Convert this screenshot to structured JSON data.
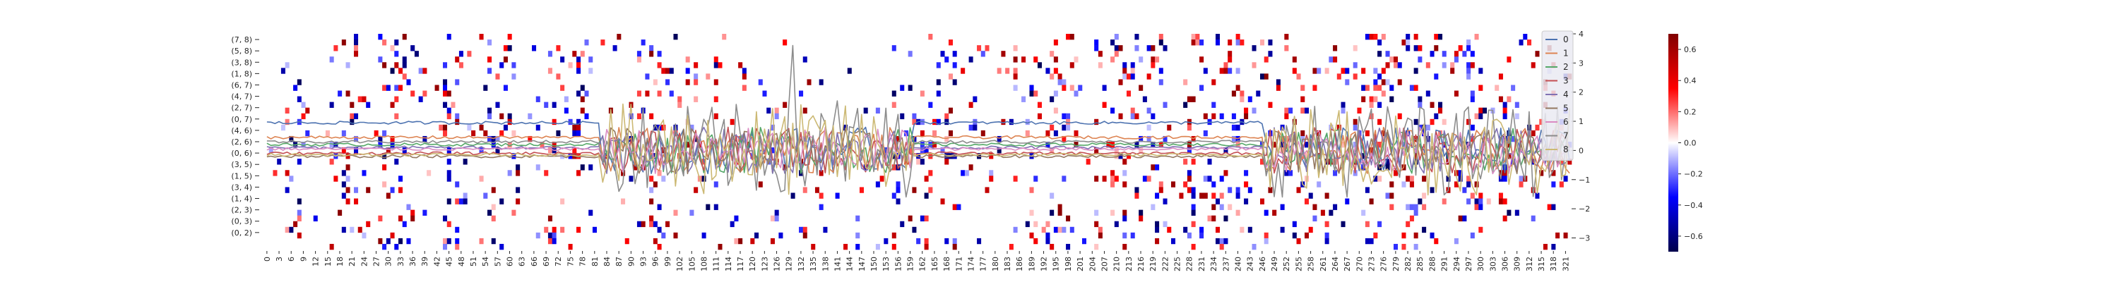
{
  "chart_data": {
    "type": "heatmap",
    "heatmap": {
      "row_labels": [
        "(7, 8)",
        "(5, 8)",
        "(3, 8)",
        "(1, 8)",
        "(6, 7)",
        "(4, 7)",
        "(2, 7)",
        "(0, 7)",
        "(4, 6)",
        "(2, 6)",
        "(0, 6)",
        "(3, 5)",
        "(1, 5)",
        "(3, 4)",
        "(1, 4)",
        "(2, 3)",
        "(0, 3)",
        "(0, 2)"
      ],
      "row_count": 38,
      "column_count": 323,
      "x_tick_step": 3,
      "x_ticks": [
        0,
        3,
        6,
        9,
        12,
        15,
        18,
        21,
        24,
        27,
        30,
        33,
        36,
        39,
        42,
        45,
        48,
        51,
        54,
        57,
        60,
        63,
        66,
        69,
        72,
        75,
        78,
        81,
        84,
        87,
        90,
        93,
        96,
        99,
        102,
        105,
        108,
        111,
        114,
        117,
        120,
        123,
        126,
        129,
        132,
        135,
        138,
        141,
        144,
        147,
        150,
        153,
        156,
        159,
        162,
        165,
        168,
        171,
        174,
        177,
        180,
        183,
        186,
        189,
        192,
        195,
        198,
        201,
        204,
        207,
        210,
        213,
        216,
        219,
        222,
        225,
        228,
        231,
        234,
        237,
        240,
        243,
        246,
        249,
        252,
        255,
        258,
        261,
        264,
        267,
        270,
        273,
        276,
        279,
        282,
        285,
        288,
        291,
        294,
        297,
        300,
        303,
        306,
        309,
        312,
        315,
        318,
        321
      ],
      "colormap": "seismic",
      "range": [
        -0.7,
        0.7
      ],
      "cells_description_note": ""
    },
    "colorbar": {
      "ticks": [
        0.6,
        0.4,
        0.2,
        0.0,
        -0.2,
        -0.4,
        -0.6
      ],
      "tick_labels": [
        "0.6",
        "0.4",
        "0.2",
        "0.0",
        "−0.2",
        "−0.4",
        "−0.6"
      ],
      "range": [
        -0.7,
        0.7
      ],
      "low_color": "#00004c",
      "mid_color": "#ffffff",
      "high_color": "#800000"
    },
    "lines": {
      "type": "line",
      "ylim": [
        -3.4,
        4.0
      ],
      "right_ticks": [
        4,
        3,
        2,
        1,
        0,
        -1,
        -2,
        -3
      ],
      "right_tick_labels": [
        "4",
        "3",
        "2",
        "1",
        "0",
        "−1",
        "−2",
        "−3"
      ],
      "legend_position": "top-right",
      "series": [
        {
          "name": "0",
          "color": "#4c72b0"
        },
        {
          "name": "1",
          "color": "#dd8452"
        },
        {
          "name": "2",
          "color": "#55a868"
        },
        {
          "name": "3",
          "color": "#c44e52"
        },
        {
          "name": "4",
          "color": "#8172b3"
        },
        {
          "name": "5",
          "color": "#937860"
        },
        {
          "name": "6",
          "color": "#da8bc3"
        },
        {
          "name": "7",
          "color": "#8c8c8c"
        },
        {
          "name": "8",
          "color": "#ccb974"
        }
      ]
    }
  }
}
